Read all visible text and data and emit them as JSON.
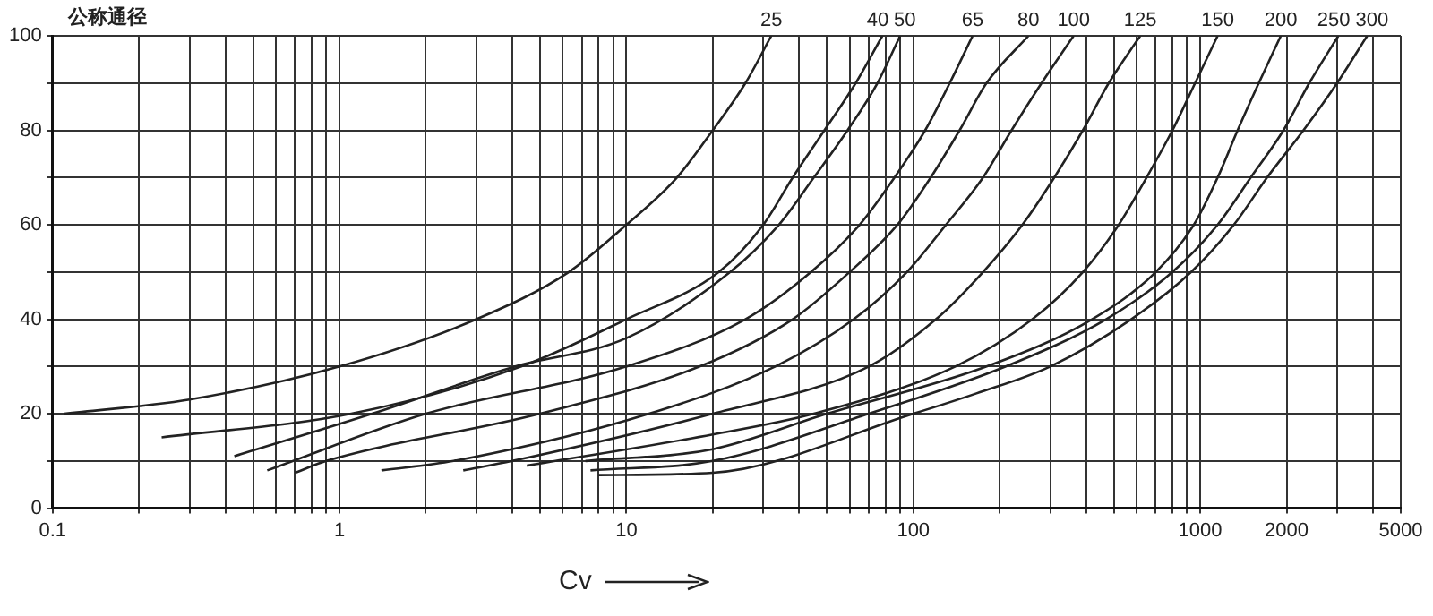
{
  "chart_data": {
    "type": "line",
    "title": "公称通径",
    "xlabel": "Cv",
    "log": "x",
    "grid": true,
    "legend": false,
    "marker": "none",
    "line_style": "solid",
    "xlim": [
      0.1,
      5000
    ],
    "xticks": [
      0.1,
      {
        "value": 0.2,
        "label": null
      },
      {
        "value": 0.3,
        "label": null
      },
      {
        "value": 0.4,
        "label": null
      },
      {
        "value": 0.5,
        "label": null
      },
      {
        "value": 0.6,
        "label": null
      },
      {
        "value": 0.7,
        "label": null
      },
      {
        "value": 0.8,
        "label": null
      },
      {
        "value": 0.9,
        "label": null
      },
      1,
      {
        "value": 2,
        "label": null
      },
      {
        "value": 3,
        "label": null
      },
      {
        "value": 4,
        "label": null
      },
      {
        "value": 5,
        "label": null
      },
      {
        "value": 6,
        "label": null
      },
      {
        "value": 7,
        "label": null
      },
      {
        "value": 8,
        "label": null
      },
      {
        "value": 9,
        "label": null
      },
      10,
      {
        "value": 20,
        "label": null
      },
      {
        "value": 30,
        "label": null
      },
      {
        "value": 40,
        "label": null
      },
      {
        "value": 50,
        "label": null
      },
      {
        "value": 60,
        "label": null
      },
      {
        "value": 70,
        "label": null
      },
      {
        "value": 80,
        "label": null
      },
      {
        "value": 90,
        "label": null
      },
      100,
      {
        "value": 200,
        "label": null
      },
      {
        "value": 300,
        "label": null
      },
      {
        "value": 400,
        "label": null
      },
      {
        "value": 500,
        "label": null
      },
      {
        "value": 600,
        "label": null
      },
      {
        "value": 700,
        "label": null
      },
      {
        "value": 800,
        "label": null
      },
      {
        "value": 900,
        "label": null
      },
      1000,
      2000,
      {
        "value": 3000,
        "label": null
      },
      {
        "value": 4000,
        "label": null
      },
      5000
    ],
    "ylim": [
      0,
      100
    ],
    "yticks": [
      0,
      {
        "value": 10,
        "label": null
      },
      20,
      {
        "value": 30,
        "label": null
      },
      40,
      {
        "value": 50,
        "label": null
      },
      60,
      {
        "value": 70,
        "label": null
      },
      80,
      {
        "value": 90,
        "label": null
      },
      100
    ],
    "series": [
      {
        "name": "25",
        "color": "#222222",
        "x": [
          0.11,
          0.3,
          1,
          3,
          6.3,
          10,
          15,
          20,
          26,
          32
        ],
        "values": [
          20,
          23,
          30,
          40,
          50,
          60,
          70,
          80,
          90,
          100
        ]
      },
      {
        "name": "40",
        "color": "#222222",
        "x": [
          0.24,
          1.1,
          4.3,
          10,
          21,
          30,
          38,
          49,
          63,
          78
        ],
        "values": [
          15,
          20,
          30,
          40,
          50,
          60,
          70,
          80,
          90,
          100
        ]
      },
      {
        "name": "50",
        "color": "#222222",
        "x": [
          0.43,
          1.3,
          4.1,
          10,
          23,
          34,
          45,
          59,
          75,
          90
        ],
        "values": [
          11,
          20,
          30,
          36,
          50,
          60,
          70,
          80,
          90,
          100
        ]
      },
      {
        "name": "65",
        "color": "#222222",
        "x": [
          0.56,
          2,
          10,
          26,
          44,
          65,
          86,
          110,
          134,
          161
        ],
        "values": [
          8,
          20,
          30,
          40,
          50,
          60,
          70,
          80,
          90,
          100
        ]
      },
      {
        "name": "80",
        "color": "#222222",
        "x": [
          0.7,
          0.9,
          5,
          18,
          38,
          60,
          88,
          115,
          145,
          180,
          252
        ],
        "values": [
          7.5,
          10,
          20,
          30,
          40,
          50,
          60,
          70,
          80,
          90,
          100
        ]
      },
      {
        "name": "100",
        "color": "#222222",
        "x": [
          1.4,
          2.5,
          12,
          33,
          62,
          95,
          130,
          175,
          220,
          280,
          362
        ],
        "values": [
          8,
          10,
          20,
          30,
          40,
          50,
          60,
          70,
          80,
          90,
          100
        ]
      },
      {
        "name": "125",
        "color": "#222222",
        "x": [
          2.7,
          4,
          20,
          70,
          120,
          175,
          240,
          310,
          390,
          480,
          618
        ],
        "values": [
          8,
          10,
          20,
          30,
          40,
          50,
          60,
          70,
          80,
          90,
          100
        ]
      },
      {
        "name": "150",
        "color": "#222222",
        "x": [
          4.5,
          20,
          45,
          140,
          260,
          390,
          520,
          650,
          800,
          960,
          1150
        ],
        "values": [
          9,
          15.6,
          20,
          30,
          40,
          50,
          60,
          70,
          80,
          90,
          100
        ]
      },
      {
        "name": "200",
        "color": "#222222",
        "x": [
          7.2,
          20,
          50,
          180,
          420,
          700,
          950,
          1150,
          1350,
          1600,
          1910
        ],
        "values": [
          10,
          12.5,
          20,
          30,
          40,
          50,
          60,
          70,
          80,
          90,
          100
        ]
      },
      {
        "name": "250",
        "color": "#222222",
        "x": [
          7.5,
          20,
          70,
          210,
          470,
          800,
          1150,
          1500,
          1950,
          2400,
          3030
        ],
        "values": [
          8,
          10,
          20,
          30,
          40,
          50,
          60,
          70,
          80,
          90,
          100
        ]
      },
      {
        "name": "300",
        "color": "#222222",
        "x": [
          8,
          20,
          100,
          166,
          300,
          575,
          930,
          1310,
          1710,
          2290,
          3000,
          3820
        ],
        "values": [
          7,
          7.5,
          20,
          24.3,
          30,
          40,
          50,
          60,
          70,
          80,
          90,
          100
        ]
      }
    ]
  }
}
